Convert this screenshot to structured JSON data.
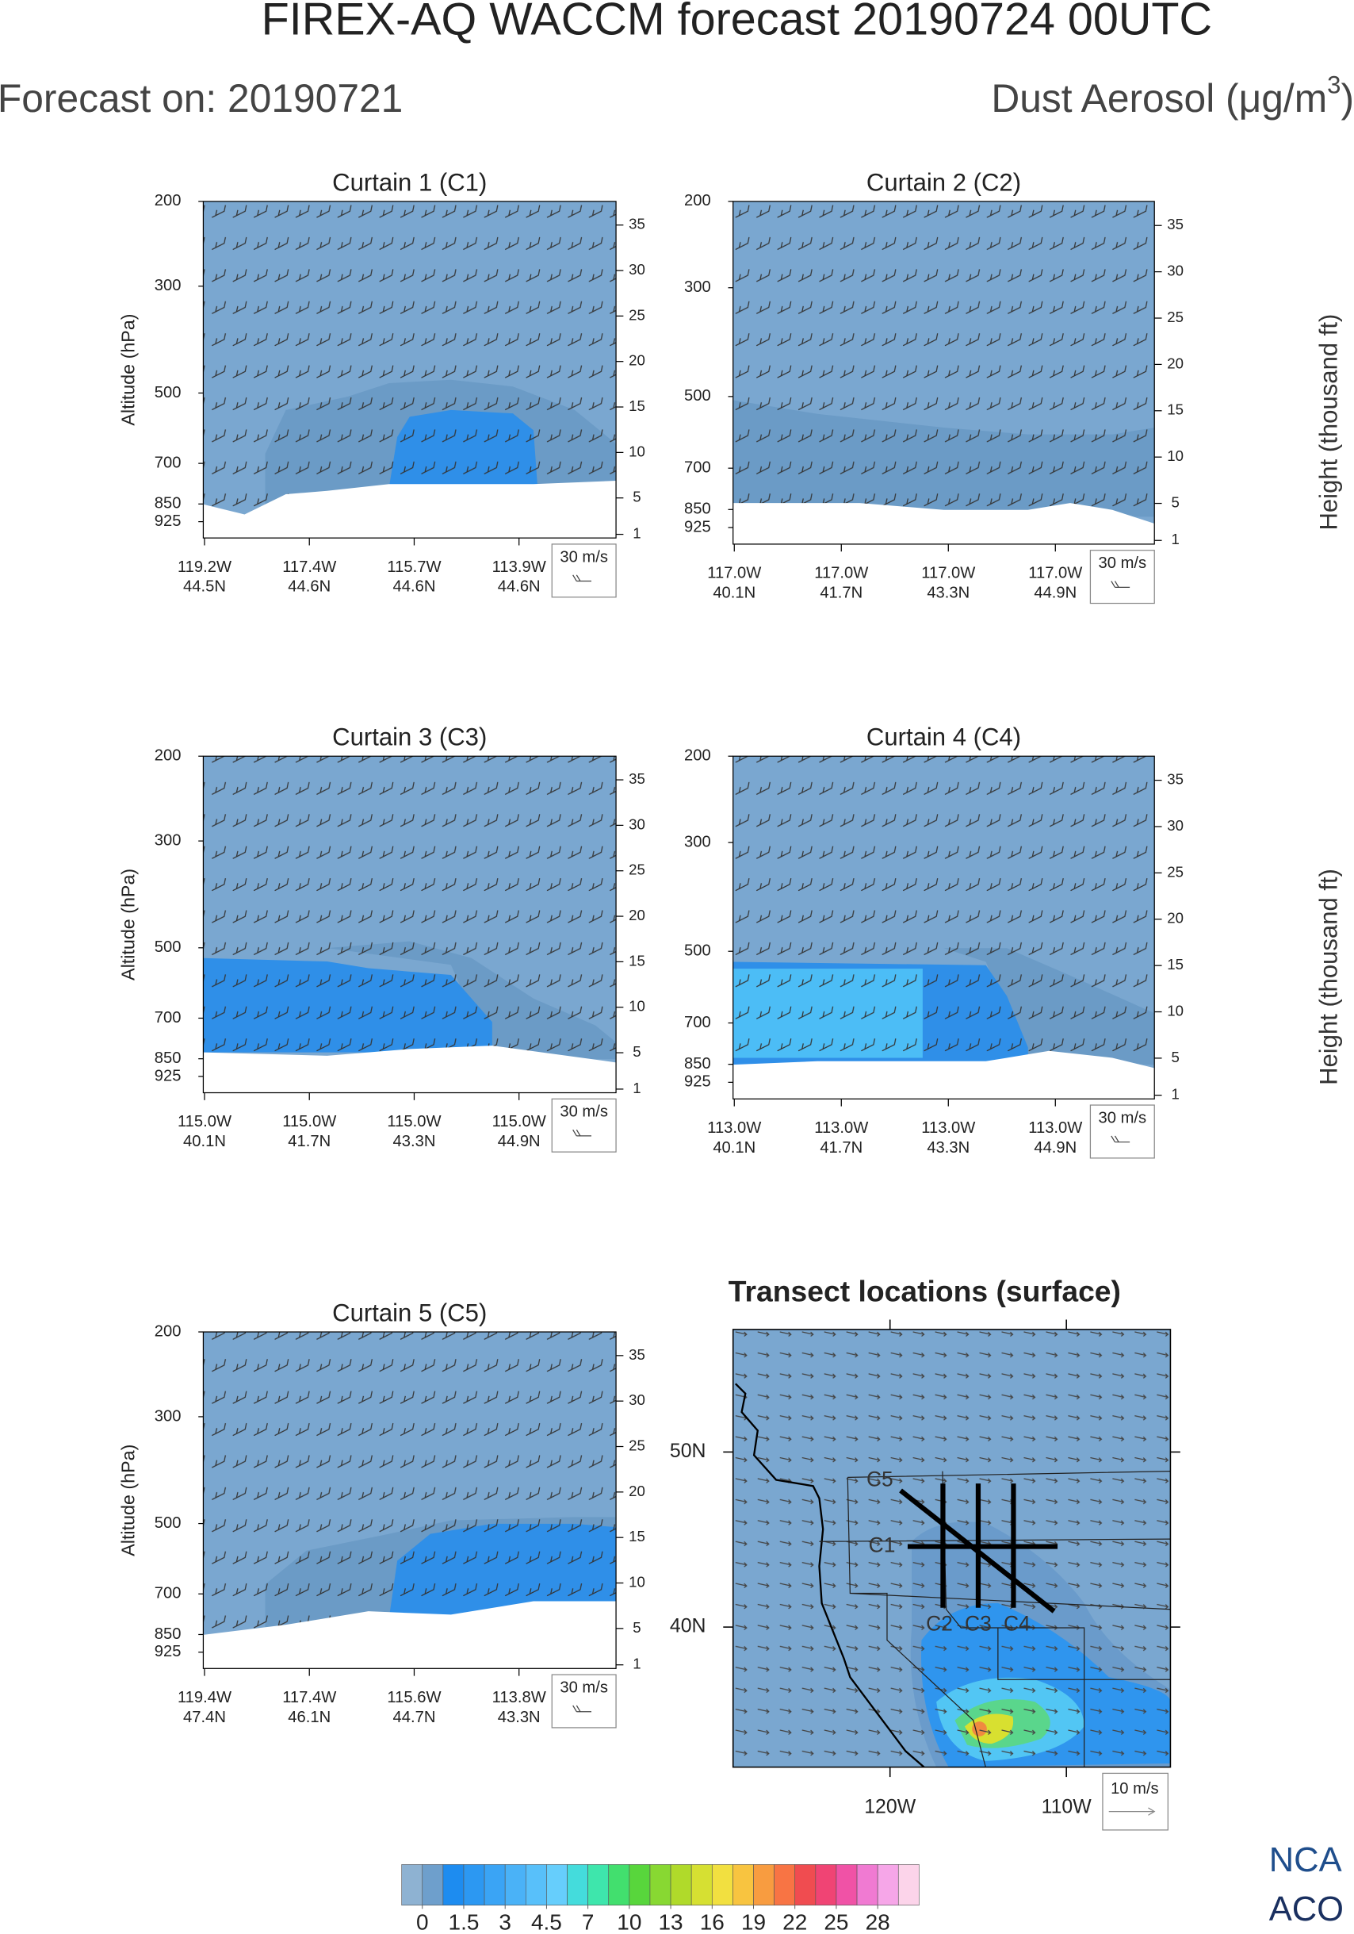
{
  "header": {
    "title": "FIREX-AQ WACCM forecast 20190724 00UTC",
    "forecast_on": "Forecast on: 20190721",
    "variable": "Dust Aerosol (μg/m",
    "variable_sup": "3",
    "variable_end": ")",
    "logo": [
      "NCA",
      "ACO"
    ]
  },
  "chart_data": [
    {
      "type": "curtain",
      "title": "Curtain 1 (C1)",
      "ylabel": "Altitude (hPa)",
      "log_y": true,
      "ylim": [
        1000,
        200
      ],
      "yticks": [
        200,
        300,
        500,
        700,
        850,
        925
      ],
      "y2lim": [
        0.6,
        37.6
      ],
      "y2ticks": [
        1,
        5,
        10,
        15,
        20,
        25,
        30,
        35
      ],
      "categories": [
        [
          "119.2W",
          "44.5N"
        ],
        [
          "117.4W",
          "44.6N"
        ],
        [
          "115.7W",
          "44.6N"
        ],
        [
          "113.9W",
          "44.6N"
        ]
      ],
      "wind_reference": "30 m/s"
    },
    {
      "type": "curtain",
      "title": "Curtain 2 (C2)",
      "y2label": "Height (thousand ft)",
      "log_y": true,
      "ylim": [
        1000,
        200
      ],
      "yticks": [
        200,
        300,
        500,
        700,
        850,
        925
      ],
      "y2lim": [
        0.6,
        37.6
      ],
      "y2ticks": [
        1,
        5,
        10,
        15,
        20,
        25,
        30,
        35
      ],
      "categories": [
        [
          "117.0W",
          "40.1N"
        ],
        [
          "117.0W",
          "41.7N"
        ],
        [
          "117.0W",
          "43.3N"
        ],
        [
          "117.0W",
          "44.9N"
        ]
      ],
      "wind_reference": "30 m/s"
    },
    {
      "type": "curtain",
      "title": "Curtain 3 (C3)",
      "ylabel": "Altitude (hPa)",
      "log_y": true,
      "ylim": [
        1000,
        200
      ],
      "yticks": [
        200,
        300,
        500,
        700,
        850,
        925
      ],
      "y2lim": [
        0.6,
        37.6
      ],
      "y2ticks": [
        1,
        5,
        10,
        15,
        20,
        25,
        30,
        35
      ],
      "categories": [
        [
          "115.0W",
          "40.1N"
        ],
        [
          "115.0W",
          "41.7N"
        ],
        [
          "115.0W",
          "43.3N"
        ],
        [
          "115.0W",
          "44.9N"
        ]
      ],
      "wind_reference": "30 m/s"
    },
    {
      "type": "curtain",
      "title": "Curtain 4 (C4)",
      "y2label": "Height (thousand ft)",
      "log_y": true,
      "ylim": [
        1000,
        200
      ],
      "yticks": [
        200,
        300,
        500,
        700,
        850,
        925
      ],
      "y2lim": [
        0.6,
        37.6
      ],
      "y2ticks": [
        1,
        5,
        10,
        15,
        20,
        25,
        30,
        35
      ],
      "categories": [
        [
          "113.0W",
          "40.1N"
        ],
        [
          "113.0W",
          "41.7N"
        ],
        [
          "113.0W",
          "43.3N"
        ],
        [
          "113.0W",
          "44.9N"
        ]
      ],
      "wind_reference": "30 m/s"
    },
    {
      "type": "curtain",
      "title": "Curtain 5 (C5)",
      "ylabel": "Altitude (hPa)",
      "log_y": true,
      "ylim": [
        1000,
        200
      ],
      "yticks": [
        200,
        300,
        500,
        700,
        850,
        925
      ],
      "y2lim": [
        0.6,
        37.6
      ],
      "y2ticks": [
        1,
        5,
        10,
        15,
        20,
        25,
        30,
        35
      ],
      "categories": [
        [
          "119.4W",
          "47.4N"
        ],
        [
          "117.4W",
          "46.1N"
        ],
        [
          "115.6W",
          "44.7N"
        ],
        [
          "113.8W",
          "43.3N"
        ]
      ],
      "wind_reference": "30 m/s"
    },
    {
      "type": "map",
      "title": "Transect locations (surface)",
      "xlim": [
        -128.9,
        -104.1
      ],
      "ylim": [
        32,
        57
      ],
      "xticks": [
        {
          "value": -120,
          "label": "120W"
        },
        {
          "value": -110,
          "label": "110W"
        }
      ],
      "yticks": [
        {
          "value": 40,
          "label": "40N"
        },
        {
          "value": 50,
          "label": "50N"
        }
      ],
      "transects": [
        {
          "name": "C1",
          "lon": [
            -119,
            -110.5
          ],
          "lat": [
            44.6,
            44.6
          ]
        },
        {
          "name": "C2",
          "lon": [
            -117,
            -117
          ],
          "lat": [
            48.2,
            41.1
          ]
        },
        {
          "name": "C3",
          "lon": [
            -115,
            -115
          ],
          "lat": [
            48.2,
            41.1
          ]
        },
        {
          "name": "C4",
          "lon": [
            -113,
            -113
          ],
          "lat": [
            48.2,
            41.1
          ]
        },
        {
          "name": "C5",
          "lon": [
            -119.4,
            -110.7
          ],
          "lat": [
            47.8,
            40.9
          ]
        }
      ],
      "color": "#000000",
      "wind_reference": "10 m/s"
    },
    {
      "type": "colorbar",
      "colors": [
        "#8eb2d2",
        "#6e9fcc",
        "#1d8cf0",
        "#2c98f2",
        "#3aa4f5",
        "#4ab2f7",
        "#58c0fa",
        "#66cefc",
        "#44dcdc",
        "#3ee6ac",
        "#42df6e",
        "#58d63c",
        "#88d832",
        "#b0da2a",
        "#d6e032",
        "#f2e040",
        "#f8c440",
        "#f89c40",
        "#f87444",
        "#f04c50",
        "#f04474",
        "#f052a6",
        "#f07ad2",
        "#f6a6e8",
        "#fcd4ea"
      ],
      "ticks": [
        0,
        1.5,
        3,
        4.5,
        7,
        10,
        13,
        16,
        19,
        22,
        25,
        28
      ]
    }
  ]
}
